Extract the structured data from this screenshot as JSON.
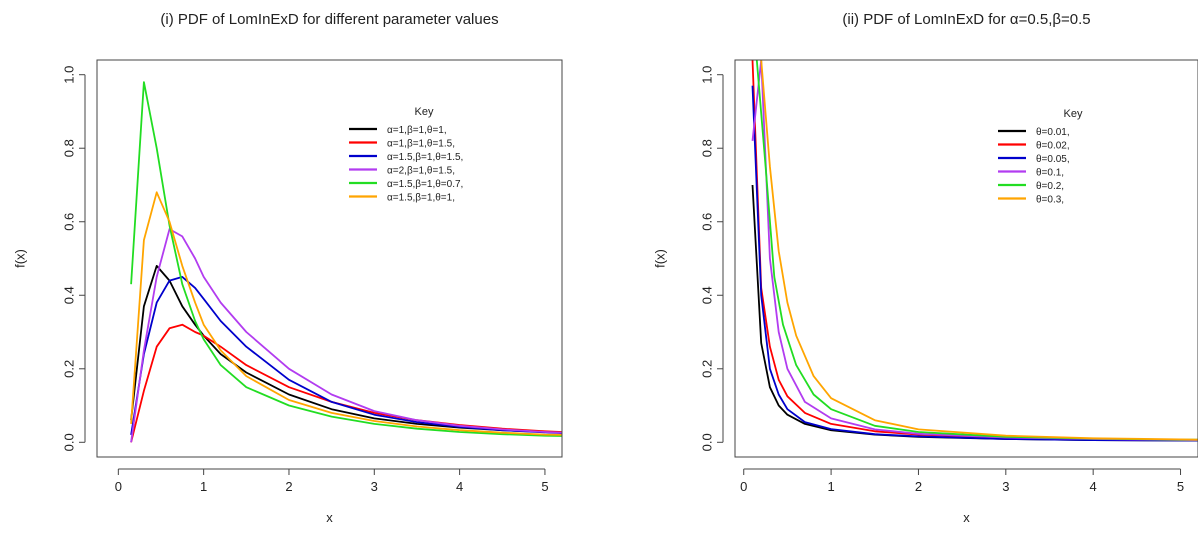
{
  "chart_data": [
    {
      "type": "line",
      "title": "(i) PDF of LomInExD for different parameter values",
      "xlabel": "x",
      "ylabel": "f(x)",
      "xlim": [
        -0.25,
        5.2
      ],
      "ylim": [
        -0.04,
        1.04
      ],
      "xticks": [
        0,
        1,
        2,
        3,
        4,
        5
      ],
      "yticks": [
        0.0,
        0.2,
        0.4,
        0.6,
        0.8,
        1.0
      ],
      "xtick_labels": [
        "0",
        "1",
        "2",
        "3",
        "4",
        "5"
      ],
      "ytick_labels": [
        "0.0",
        "0.2",
        "0.4",
        "0.6",
        "0.8",
        "1.0"
      ],
      "legend_title": "Key",
      "legend_position": "top-right",
      "series": [
        {
          "name": "α=1,β=1,θ=1,",
          "color": "#000000",
          "x": [
            0.15,
            0.3,
            0.45,
            0.6,
            0.75,
            0.9,
            1.0,
            1.2,
            1.5,
            2.0,
            2.5,
            3.0,
            3.5,
            4.0,
            4.5,
            5.0,
            5.2
          ],
          "y": [
            0.06,
            0.37,
            0.48,
            0.44,
            0.37,
            0.32,
            0.29,
            0.24,
            0.19,
            0.13,
            0.09,
            0.065,
            0.05,
            0.04,
            0.033,
            0.028,
            0.026
          ]
        },
        {
          "name": "α=1,β=1,θ=1.5,",
          "color": "#ff0000",
          "x": [
            0.15,
            0.3,
            0.45,
            0.6,
            0.75,
            0.9,
            1.0,
            1.2,
            1.5,
            2.0,
            2.5,
            3.0,
            3.5,
            4.0,
            4.5,
            5.0,
            5.2
          ],
          "y": [
            0.0,
            0.14,
            0.26,
            0.31,
            0.32,
            0.3,
            0.29,
            0.26,
            0.21,
            0.15,
            0.11,
            0.08,
            0.06,
            0.047,
            0.037,
            0.03,
            0.028
          ]
        },
        {
          "name": "α=1.5,β=1,θ=1.5,",
          "color": "#0000cc",
          "x": [
            0.15,
            0.3,
            0.45,
            0.6,
            0.75,
            0.9,
            1.0,
            1.2,
            1.5,
            2.0,
            2.5,
            3.0,
            3.5,
            4.0,
            4.5,
            5.0,
            5.2
          ],
          "y": [
            0.02,
            0.24,
            0.38,
            0.44,
            0.45,
            0.42,
            0.39,
            0.33,
            0.26,
            0.17,
            0.11,
            0.075,
            0.055,
            0.042,
            0.033,
            0.027,
            0.025
          ]
        },
        {
          "name": "α=2,β=1,θ=1.5,",
          "color": "#b23cf0",
          "x": [
            0.15,
            0.3,
            0.45,
            0.6,
            0.75,
            0.9,
            1.0,
            1.2,
            1.5,
            2.0,
            2.5,
            3.0,
            3.5,
            4.0,
            4.5,
            5.0,
            5.2
          ],
          "y": [
            0.0,
            0.25,
            0.45,
            0.58,
            0.56,
            0.5,
            0.45,
            0.38,
            0.3,
            0.2,
            0.13,
            0.085,
            0.06,
            0.045,
            0.035,
            0.028,
            0.026
          ]
        },
        {
          "name": "α=1.5,β=1,θ=0.7,",
          "color": "#22dd22",
          "x": [
            0.15,
            0.3,
            0.45,
            0.6,
            0.75,
            0.9,
            1.0,
            1.2,
            1.5,
            2.0,
            2.5,
            3.0,
            3.5,
            4.0,
            4.5,
            5.0,
            5.2
          ],
          "y": [
            0.43,
            0.98,
            0.8,
            0.59,
            0.43,
            0.33,
            0.28,
            0.21,
            0.15,
            0.1,
            0.07,
            0.05,
            0.037,
            0.028,
            0.022,
            0.018,
            0.017
          ]
        },
        {
          "name": "α=1.5,β=1,θ=1,",
          "color": "#ffa500",
          "x": [
            0.15,
            0.3,
            0.45,
            0.6,
            0.75,
            0.9,
            1.0,
            1.2,
            1.5,
            2.0,
            2.5,
            3.0,
            3.5,
            4.0,
            4.5,
            5.0,
            5.2
          ],
          "y": [
            0.05,
            0.55,
            0.68,
            0.6,
            0.48,
            0.38,
            0.32,
            0.25,
            0.18,
            0.115,
            0.08,
            0.058,
            0.043,
            0.033,
            0.026,
            0.021,
            0.02
          ]
        }
      ]
    },
    {
      "type": "line",
      "title": "(ii) PDF of LomInExD for α=0.5,β=0.5",
      "xlabel": "x",
      "ylabel": "f(x)",
      "xlim": [
        -0.1,
        5.2
      ],
      "ylim": [
        -0.04,
        1.04
      ],
      "xticks": [
        0,
        1,
        2,
        3,
        4,
        5
      ],
      "yticks": [
        0.0,
        0.2,
        0.4,
        0.6,
        0.8,
        1.0
      ],
      "xtick_labels": [
        "0",
        "1",
        "2",
        "3",
        "4",
        "5"
      ],
      "ytick_labels": [
        "0.0",
        "0.2",
        "0.4",
        "0.6",
        "0.8",
        "1.0"
      ],
      "legend_title": "Key",
      "legend_position": "top-right",
      "series": [
        {
          "name": "θ=0.01,",
          "color": "#000000",
          "x": [
            0.1,
            0.2,
            0.3,
            0.4,
            0.5,
            0.7,
            1.0,
            1.5,
            2.0,
            3.0,
            4.0,
            5.0,
            5.2
          ],
          "y": [
            0.7,
            0.27,
            0.15,
            0.1,
            0.075,
            0.05,
            0.033,
            0.021,
            0.015,
            0.009,
            0.006,
            0.005,
            0.005
          ]
        },
        {
          "name": "θ=0.02,",
          "color": "#ff0000",
          "x": [
            0.1,
            0.2,
            0.3,
            0.4,
            0.5,
            0.7,
            1.0,
            1.5,
            2.0,
            3.0,
            4.0,
            5.0,
            5.2
          ],
          "y": [
            1.04,
            0.42,
            0.26,
            0.17,
            0.125,
            0.08,
            0.05,
            0.03,
            0.021,
            0.012,
            0.008,
            0.006,
            0.006
          ]
        },
        {
          "name": "θ=0.05,",
          "color": "#0000cc",
          "x": [
            0.1,
            0.2,
            0.3,
            0.4,
            0.5,
            0.7,
            1.0,
            1.5,
            2.0,
            3.0,
            4.0,
            5.0,
            5.2
          ],
          "y": [
            0.97,
            0.4,
            0.2,
            0.13,
            0.09,
            0.055,
            0.036,
            0.022,
            0.016,
            0.009,
            0.006,
            0.005,
            0.005
          ]
        },
        {
          "name": "θ=0.1,",
          "color": "#b23cf0",
          "x": [
            0.1,
            0.2,
            0.3,
            0.4,
            0.5,
            0.7,
            1.0,
            1.5,
            2.0,
            3.0,
            4.0,
            5.0,
            5.2
          ],
          "y": [
            0.82,
            1.04,
            0.5,
            0.3,
            0.2,
            0.11,
            0.065,
            0.035,
            0.023,
            0.013,
            0.009,
            0.006,
            0.006
          ]
        },
        {
          "name": "θ=0.2,",
          "color": "#22dd22",
          "x": [
            0.15,
            0.25,
            0.35,
            0.45,
            0.6,
            0.8,
            1.0,
            1.5,
            2.0,
            3.0,
            4.0,
            5.0,
            5.2
          ],
          "y": [
            1.04,
            0.75,
            0.45,
            0.32,
            0.21,
            0.13,
            0.09,
            0.045,
            0.028,
            0.015,
            0.01,
            0.007,
            0.007
          ]
        },
        {
          "name": "θ=0.3,",
          "color": "#ffa500",
          "x": [
            0.2,
            0.3,
            0.4,
            0.5,
            0.6,
            0.8,
            1.0,
            1.5,
            2.0,
            3.0,
            4.0,
            5.0,
            5.2
          ],
          "y": [
            1.04,
            0.75,
            0.52,
            0.38,
            0.29,
            0.18,
            0.12,
            0.06,
            0.035,
            0.018,
            0.011,
            0.008,
            0.007
          ]
        }
      ]
    }
  ]
}
